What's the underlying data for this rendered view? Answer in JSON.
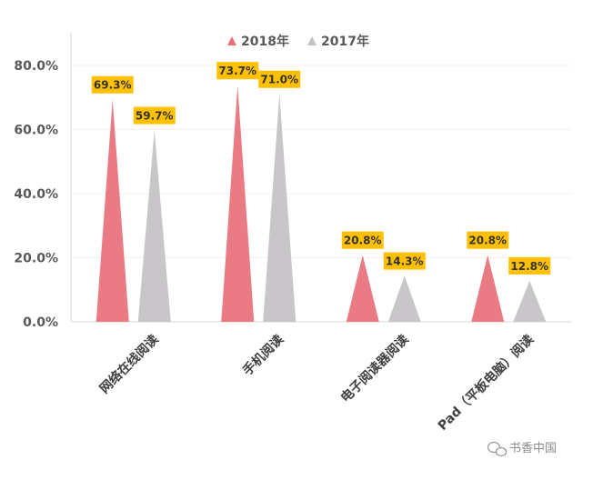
{
  "chart_data": {
    "type": "bar",
    "bar_shape": "triangle",
    "categories": [
      "网络在线阅读",
      "手机阅读",
      "电子阅读器阅读",
      "Pad（平板电脑）阅读"
    ],
    "series": [
      {
        "name": "2018年",
        "color": "#e8707a",
        "values": [
          69.3,
          73.7,
          20.8,
          20.8
        ],
        "labels": [
          "69.3%",
          "73.7%",
          "20.8%",
          "20.8%"
        ]
      },
      {
        "name": "2017年",
        "color": "#c3c1c3",
        "values": [
          59.7,
          71.0,
          14.3,
          12.8
        ],
        "labels": [
          "59.7%",
          "71.0%",
          "14.3%",
          "12.8%"
        ]
      }
    ],
    "yticks": [
      "0.0%",
      "20.0%",
      "40.0%",
      "60.0%",
      "80.0%"
    ],
    "ylim": [
      0,
      80
    ],
    "grid": true,
    "legend_position": "top",
    "data_label_bg": "#ffc000"
  },
  "watermark": {
    "text": "书香中国",
    "icon": "wechat-icon"
  }
}
